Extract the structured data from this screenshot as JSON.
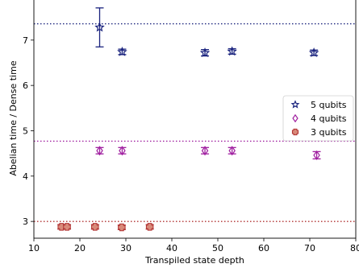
{
  "chart_data": {
    "type": "scatter",
    "xlabel": "Transpiled state depth",
    "ylabel": "Abelian time / Dense time",
    "xlim": [
      10,
      80
    ],
    "ylim": [
      2.63,
      7.92
    ],
    "xticks": [
      10,
      20,
      30,
      40,
      50,
      60,
      70,
      80
    ],
    "yticks": [
      3,
      4,
      5,
      6,
      7
    ],
    "grid": false,
    "legend_position": "center-right",
    "series": [
      {
        "name": "5 qubits",
        "color": "#1a237e",
        "marker": "star-open",
        "points": [
          {
            "x": 24.3,
            "y": 7.28,
            "yerr": 0.43
          },
          {
            "x": 29.2,
            "y": 6.74,
            "yerr": 0.06
          },
          {
            "x": 47.2,
            "y": 6.72,
            "yerr": 0.07
          },
          {
            "x": 53.1,
            "y": 6.75,
            "yerr": 0.06
          },
          {
            "x": 70.9,
            "y": 6.72,
            "yerr": 0.06
          }
        ],
        "reference_line": 7.36
      },
      {
        "name": "4 qubits",
        "color": "#a020a0",
        "marker": "diamond-open",
        "points": [
          {
            "x": 24.3,
            "y": 4.56,
            "yerr": 0.07
          },
          {
            "x": 29.2,
            "y": 4.56,
            "yerr": 0.07
          },
          {
            "x": 47.2,
            "y": 4.56,
            "yerr": 0.07
          },
          {
            "x": 53.1,
            "y": 4.56,
            "yerr": 0.07
          },
          {
            "x": 71.5,
            "y": 4.46,
            "yerr": 0.08
          }
        ],
        "reference_line": 4.77
      },
      {
        "name": "3 qubits",
        "color": "#b03030",
        "marker": "plus-filled",
        "points": [
          {
            "x": 16.0,
            "y": 2.88,
            "yerr": 0.05
          },
          {
            "x": 17.2,
            "y": 2.88,
            "yerr": 0.05
          },
          {
            "x": 23.3,
            "y": 2.88,
            "yerr": 0.05
          },
          {
            "x": 29.1,
            "y": 2.87,
            "yerr": 0.05
          },
          {
            "x": 35.2,
            "y": 2.88,
            "yerr": 0.05
          }
        ],
        "reference_line": 3.0
      }
    ]
  }
}
